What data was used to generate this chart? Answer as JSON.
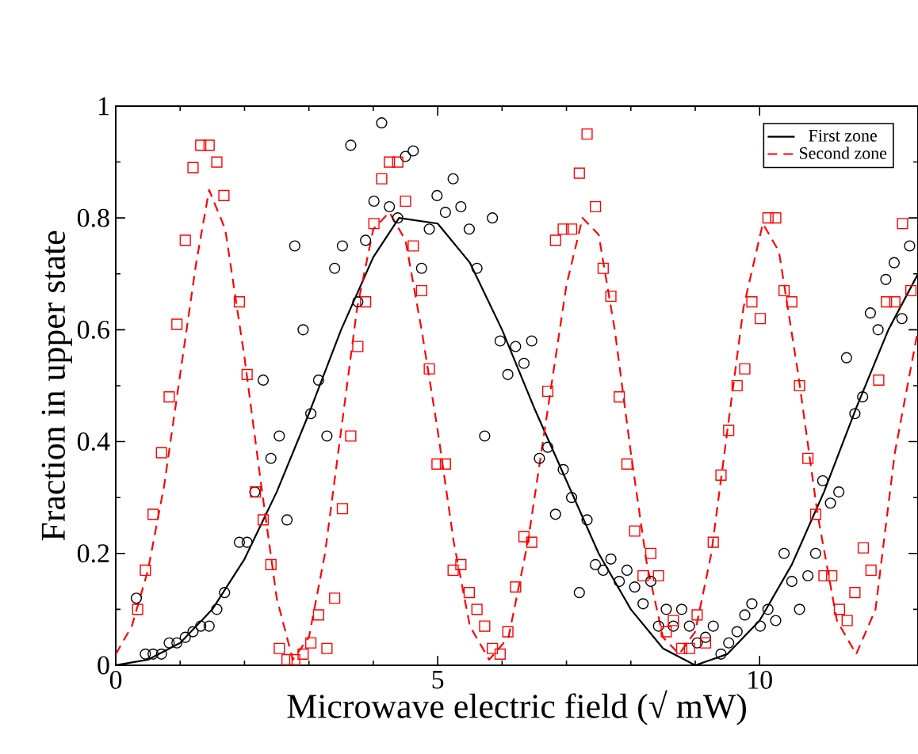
{
  "chart_data": {
    "type": "scatter",
    "xlabel": "Microwave electric field (√ mW)",
    "ylabel": "Fraction in upper state",
    "xlim": [
      0,
      12.46
    ],
    "ylim": [
      0,
      1
    ],
    "xticks": [
      0,
      5,
      10
    ],
    "yticks": [
      0,
      0.2,
      0.4,
      0.6,
      0.8,
      1
    ],
    "legend": "top right",
    "grid": false,
    "series": [
      {
        "color": "#000000",
        "marker": "circle",
        "x": [
          0.32,
          0.46,
          0.58,
          0.71,
          0.83,
          0.95,
          1.08,
          1.2,
          1.32,
          1.45,
          1.57,
          1.69,
          1.92,
          2.04,
          2.16,
          2.29,
          2.41,
          2.54,
          2.66,
          2.78,
          2.91,
          3.03,
          3.15,
          3.28,
          3.4,
          3.52,
          3.65,
          3.76,
          3.88,
          4.01,
          4.13,
          4.25,
          4.38,
          4.5,
          4.62,
          4.75,
          4.87,
          4.99,
          5.12,
          5.24,
          5.36,
          5.49,
          5.61,
          5.73,
          5.85,
          5.97,
          6.09,
          6.21,
          6.34,
          6.46,
          6.58,
          6.71,
          6.83,
          6.95,
          7.08,
          7.2,
          7.32,
          7.45,
          7.57,
          7.69,
          7.82,
          7.94,
          8.06,
          8.19,
          8.31,
          8.43,
          8.55,
          8.66,
          8.79,
          8.91,
          9.03,
          9.16,
          9.28,
          9.4,
          9.52,
          9.65,
          9.77,
          9.88,
          10.01,
          10.13,
          10.25,
          10.38,
          10.5,
          10.62,
          10.75,
          10.87,
          10.98,
          11.1,
          11.23,
          11.35,
          11.48,
          11.6,
          11.72,
          11.84,
          11.96,
          12.09,
          12.21,
          12.33
        ],
        "values": [
          0.12,
          0.02,
          0.02,
          0.02,
          0.04,
          0.04,
          0.05,
          0.06,
          0.07,
          0.07,
          0.1,
          0.13,
          0.22,
          0.22,
          0.31,
          0.51,
          0.37,
          0.41,
          0.26,
          0.75,
          0.6,
          0.45,
          0.51,
          0.41,
          0.71,
          0.75,
          0.93,
          0.65,
          0.76,
          0.83,
          0.97,
          0.82,
          0.8,
          0.91,
          0.92,
          0.71,
          0.78,
          0.84,
          0.81,
          0.87,
          0.82,
          0.78,
          0.71,
          0.41,
          0.8,
          0.58,
          0.52,
          0.57,
          0.54,
          0.58,
          0.37,
          0.39,
          0.27,
          0.35,
          0.3,
          0.13,
          0.26,
          0.18,
          0.17,
          0.19,
          0.15,
          0.17,
          0.14,
          0.11,
          0.15,
          0.07,
          0.1,
          0.07,
          0.1,
          0.07,
          0.04,
          0.05,
          0.07,
          0.02,
          0.04,
          0.06,
          0.09,
          0.11,
          0.07,
          0.1,
          0.08,
          0.2,
          0.15,
          0.1,
          0.16,
          0.2,
          0.33,
          0.29,
          0.31,
          0.55,
          0.45,
          0.48,
          0.63,
          0.6,
          0.69,
          0.72,
          0.62,
          0.75
        ]
      },
      {
        "color": "#ff0000",
        "marker": "square",
        "x": [
          0.34,
          0.46,
          0.58,
          0.71,
          0.83,
          0.95,
          1.08,
          1.2,
          1.32,
          1.45,
          1.57,
          1.68,
          1.92,
          2.04,
          2.17,
          2.29,
          2.41,
          2.54,
          2.66,
          2.78,
          2.91,
          3.03,
          3.15,
          3.28,
          3.4,
          3.52,
          3.65,
          3.76,
          3.88,
          4.01,
          4.13,
          4.25,
          4.38,
          4.5,
          4.62,
          4.75,
          4.87,
          4.99,
          5.12,
          5.24,
          5.36,
          5.49,
          5.61,
          5.73,
          5.85,
          5.97,
          6.09,
          6.21,
          6.34,
          6.46,
          6.71,
          6.83,
          6.95,
          7.08,
          7.2,
          7.32,
          7.45,
          7.57,
          7.69,
          7.82,
          7.94,
          8.06,
          8.19,
          8.31,
          8.43,
          8.55,
          8.66,
          8.79,
          8.91,
          9.03,
          9.16,
          9.28,
          9.4,
          9.52,
          9.65,
          9.77,
          9.88,
          10.01,
          10.13,
          10.25,
          10.38,
          10.5,
          10.62,
          10.75,
          10.87,
          11.0,
          11.12,
          11.24,
          11.36,
          11.48,
          11.61,
          11.73,
          11.85,
          11.97,
          12.1,
          12.22,
          12.35
        ],
        "values": [
          0.1,
          0.17,
          0.27,
          0.38,
          0.48,
          0.61,
          0.76,
          0.89,
          0.93,
          0.93,
          0.9,
          0.84,
          0.65,
          0.52,
          0.31,
          0.26,
          0.18,
          0.03,
          0.01,
          0.01,
          0.02,
          0.04,
          0.09,
          0.03,
          0.12,
          0.28,
          0.41,
          0.57,
          0.65,
          0.79,
          0.87,
          0.9,
          0.9,
          0.83,
          0.75,
          0.67,
          0.53,
          0.36,
          0.36,
          0.17,
          0.18,
          0.13,
          0.1,
          0.07,
          0.03,
          0.02,
          0.06,
          0.14,
          0.23,
          0.22,
          0.49,
          0.76,
          0.78,
          0.78,
          0.88,
          0.95,
          0.82,
          0.71,
          0.66,
          0.48,
          0.36,
          0.24,
          0.16,
          0.2,
          0.16,
          0.06,
          0.08,
          0.03,
          0.03,
          0.09,
          0.04,
          0.22,
          0.34,
          0.42,
          0.5,
          0.53,
          0.65,
          0.62,
          0.8,
          0.8,
          0.67,
          0.65,
          0.5,
          0.37,
          0.27,
          0.16,
          0.16,
          0.1,
          0.08,
          0.13,
          0.21,
          0.17,
          0.51,
          0.65,
          0.65,
          0.79,
          0.67
        ]
      },
      {
        "type": "line",
        "name": "First zone",
        "color": "#000000",
        "line_style": "solid",
        "marker": "none",
        "x": [
          0,
          0.5,
          1,
          1.5,
          2,
          2.5,
          3,
          3.5,
          4,
          4.4,
          5,
          5.5,
          6,
          6.5,
          7,
          7.5,
          8,
          8.5,
          9,
          9.5,
          10,
          10.5,
          11,
          11.5,
          12,
          12.46
        ],
        "values": [
          0,
          0.01,
          0.04,
          0.1,
          0.19,
          0.31,
          0.45,
          0.6,
          0.73,
          0.8,
          0.79,
          0.72,
          0.6,
          0.46,
          0.33,
          0.2,
          0.1,
          0.03,
          0,
          0.02,
          0.08,
          0.18,
          0.31,
          0.46,
          0.6,
          0.7
        ]
      },
      {
        "type": "line",
        "name": "Second zone",
        "color": "#ff0000",
        "line_style": "dashed",
        "marker": "none",
        "x": [
          0,
          0.25,
          0.5,
          0.75,
          1,
          1.25,
          1.45,
          1.7,
          2,
          2.25,
          2.5,
          2.75,
          3,
          3.25,
          3.5,
          3.75,
          4,
          4.25,
          4.5,
          4.75,
          5,
          5.25,
          5.5,
          5.8,
          6.1,
          6.4,
          6.7,
          7,
          7.25,
          7.5,
          7.75,
          8,
          8.25,
          8.5,
          8.75,
          9,
          9.25,
          9.5,
          9.75,
          10.05,
          10.3,
          10.6,
          10.9,
          11.2,
          11.5,
          11.8,
          12.1,
          12.46
        ],
        "values": [
          0.02,
          0.07,
          0.17,
          0.32,
          0.52,
          0.72,
          0.85,
          0.78,
          0.55,
          0.33,
          0.12,
          0.01,
          0.05,
          0.2,
          0.42,
          0.64,
          0.78,
          0.81,
          0.76,
          0.6,
          0.42,
          0.22,
          0.07,
          0.01,
          0.05,
          0.22,
          0.45,
          0.68,
          0.8,
          0.77,
          0.6,
          0.38,
          0.18,
          0.05,
          0.02,
          0.06,
          0.2,
          0.42,
          0.64,
          0.79,
          0.74,
          0.52,
          0.27,
          0.08,
          0.02,
          0.1,
          0.38,
          0.6
        ]
      }
    ]
  }
}
